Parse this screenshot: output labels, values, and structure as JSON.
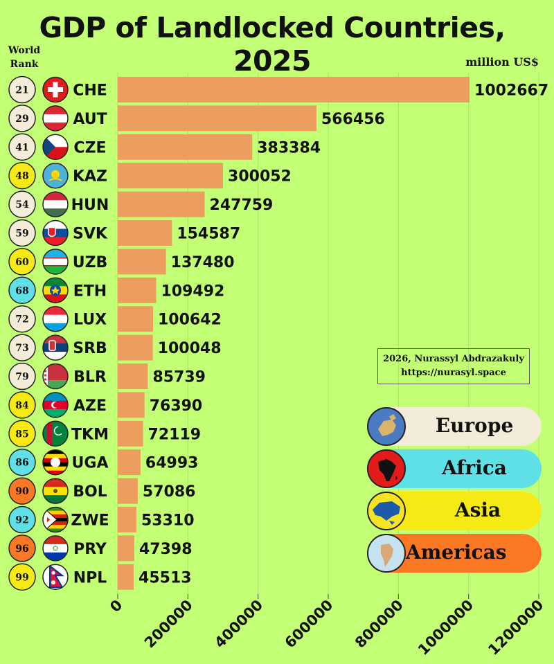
{
  "title": "GDP of Landlocked Countries, 2025",
  "rank_header_line1": "World",
  "rank_header_line2": "Rank",
  "unit": "million US$",
  "credit_line1": "2026, Nurassyl Abdrazakuly",
  "credit_line2": "https://nurasyl.space",
  "colors": {
    "background": "#c2ff74",
    "bar": "#eb9e5e",
    "Europe": "#f3ecd8",
    "Africa": "#5fe0e6",
    "Asia": "#f6ea14",
    "Americas": "#fa7823"
  },
  "legend": [
    {
      "region": "Europe",
      "label": "Europe",
      "icon": "europe-globe-icon"
    },
    {
      "region": "Africa",
      "label": "Africa",
      "icon": "africa-globe-icon"
    },
    {
      "region": "Asia",
      "label": "Asia",
      "icon": "asia-globe-icon"
    },
    {
      "region": "Americas",
      "label": "Americas",
      "icon": "americas-globe-icon"
    }
  ],
  "chart_data": {
    "type": "bar",
    "orientation": "horizontal",
    "categories": [
      "CHE",
      "AUT",
      "CZE",
      "KAZ",
      "HUN",
      "SVK",
      "UZB",
      "ETH",
      "LUX",
      "SRB",
      "BLR",
      "AZE",
      "TKM",
      "UGA",
      "BOL",
      "ZWE",
      "PRY",
      "NPL"
    ],
    "values": [
      1002667,
      566456,
      383384,
      300052,
      247759,
      154587,
      137480,
      109492,
      100642,
      100048,
      85739,
      76390,
      72119,
      64993,
      57086,
      53310,
      47398,
      45513
    ],
    "ranks": [
      21,
      29,
      41,
      48,
      54,
      59,
      60,
      68,
      72,
      73,
      79,
      84,
      85,
      86,
      90,
      92,
      96,
      99
    ],
    "regions": [
      "Europe",
      "Europe",
      "Europe",
      "Asia",
      "Europe",
      "Europe",
      "Asia",
      "Africa",
      "Europe",
      "Europe",
      "Europe",
      "Asia",
      "Asia",
      "Africa",
      "Americas",
      "Africa",
      "Americas",
      "Asia"
    ],
    "flags": [
      "switzerland-flag-icon",
      "austria-flag-icon",
      "czechia-flag-icon",
      "kazakhstan-flag-icon",
      "hungary-flag-icon",
      "slovakia-flag-icon",
      "uzbekistan-flag-icon",
      "ethiopia-flag-icon",
      "luxembourg-flag-icon",
      "serbia-flag-icon",
      "belarus-flag-icon",
      "azerbaijan-flag-icon",
      "turkmenistan-flag-icon",
      "uganda-flag-icon",
      "bolivia-flag-icon",
      "zimbabwe-flag-icon",
      "paraguay-flag-icon",
      "nepal-flag-icon"
    ],
    "xlim": [
      0,
      1200000
    ],
    "xticks": [
      "0",
      "200000",
      "400000",
      "600000",
      "800000",
      "1000000",
      "1200000"
    ],
    "grid": true,
    "legend_position": "bottom-right"
  }
}
